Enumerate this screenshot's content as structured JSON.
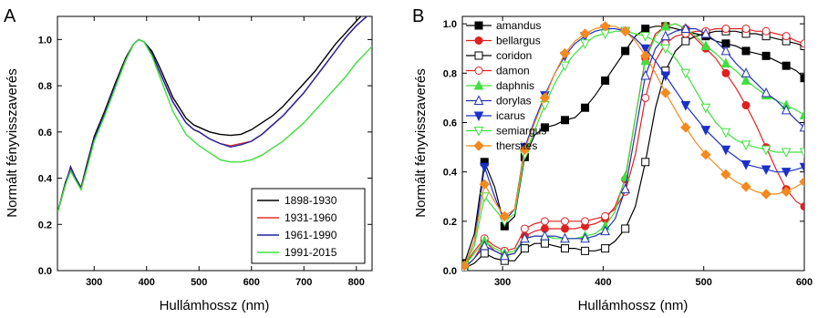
{
  "chart_data": [
    {
      "type": "line",
      "panel_label": "A",
      "xlabel": "Hullámhossz (nm)",
      "ylabel": "Normált fényvisszaverés",
      "xlim": [
        230,
        830
      ],
      "ylim": [
        0.0,
        1.1
      ],
      "xticks": [
        300,
        400,
        500,
        600,
        700,
        800
      ],
      "yticks": [
        0.0,
        0.2,
        0.4,
        0.6,
        0.8,
        1.0
      ],
      "ytick_labels": [
        "0.0",
        "0.2",
        "0.4",
        "0.6",
        "0.8",
        "1.0"
      ],
      "grid": false,
      "legend_position": "bottom-right",
      "series": [
        {
          "name": "1898-1930",
          "color": "#000000",
          "x": [
            230,
            245,
            255,
            265,
            275,
            285,
            300,
            320,
            340,
            360,
            375,
            385,
            395,
            410,
            425,
            450,
            475,
            490,
            500,
            520,
            540,
            560,
            580,
            600,
            620,
            640,
            660,
            680,
            700,
            720,
            740,
            760,
            780,
            800,
            830
          ],
          "y": [
            0.25,
            0.38,
            0.44,
            0.4,
            0.36,
            0.45,
            0.58,
            0.69,
            0.81,
            0.92,
            0.98,
            1.0,
            0.99,
            0.95,
            0.88,
            0.75,
            0.66,
            0.63,
            0.62,
            0.6,
            0.59,
            0.585,
            0.59,
            0.61,
            0.64,
            0.67,
            0.71,
            0.76,
            0.81,
            0.86,
            0.92,
            0.98,
            1.03,
            1.08,
            1.15
          ]
        },
        {
          "name": "1931-1960",
          "color": "#e03030",
          "x": [
            230,
            245,
            255,
            265,
            275,
            285,
            300,
            320,
            340,
            360,
            375,
            385,
            395,
            410,
            425,
            450,
            475,
            490,
            500,
            520,
            540,
            560,
            580,
            600,
            620,
            640,
            660,
            680,
            700,
            720,
            740,
            760,
            780,
            800,
            830
          ],
          "y": [
            0.25,
            0.37,
            0.44,
            0.4,
            0.36,
            0.44,
            0.57,
            0.68,
            0.8,
            0.91,
            0.98,
            1.0,
            0.99,
            0.94,
            0.86,
            0.73,
            0.64,
            0.61,
            0.6,
            0.57,
            0.55,
            0.54,
            0.55,
            0.56,
            0.59,
            0.63,
            0.67,
            0.72,
            0.77,
            0.83,
            0.89,
            0.95,
            1.01,
            1.06,
            1.12
          ]
        },
        {
          "name": "1961-1990",
          "color": "#2020a0",
          "x": [
            230,
            245,
            255,
            265,
            275,
            285,
            300,
            320,
            340,
            360,
            375,
            385,
            395,
            410,
            425,
            450,
            475,
            490,
            500,
            520,
            540,
            560,
            580,
            600,
            620,
            640,
            660,
            680,
            700,
            720,
            740,
            760,
            780,
            800,
            830
          ],
          "y": [
            0.25,
            0.37,
            0.45,
            0.4,
            0.355,
            0.44,
            0.57,
            0.68,
            0.8,
            0.91,
            0.98,
            1.0,
            0.99,
            0.94,
            0.86,
            0.73,
            0.64,
            0.61,
            0.6,
            0.57,
            0.55,
            0.535,
            0.545,
            0.56,
            0.59,
            0.63,
            0.67,
            0.72,
            0.77,
            0.83,
            0.89,
            0.95,
            1.01,
            1.06,
            1.12
          ]
        },
        {
          "name": "1991-2015",
          "color": "#3de03d",
          "x": [
            230,
            245,
            255,
            265,
            275,
            285,
            300,
            320,
            340,
            360,
            375,
            385,
            395,
            410,
            425,
            450,
            475,
            490,
            500,
            520,
            540,
            560,
            580,
            600,
            620,
            640,
            660,
            680,
            700,
            720,
            740,
            760,
            780,
            800,
            830
          ],
          "y": [
            0.25,
            0.37,
            0.43,
            0.39,
            0.35,
            0.43,
            0.56,
            0.67,
            0.79,
            0.91,
            0.98,
            1.0,
            0.99,
            0.93,
            0.84,
            0.69,
            0.59,
            0.56,
            0.54,
            0.51,
            0.48,
            0.47,
            0.47,
            0.48,
            0.5,
            0.53,
            0.56,
            0.6,
            0.64,
            0.69,
            0.74,
            0.79,
            0.84,
            0.9,
            0.97
          ]
        }
      ]
    },
    {
      "type": "line",
      "panel_label": "B",
      "xlabel": "Hullámhossz (nm)",
      "ylabel": "Normált fényvisszaverés",
      "xlim": [
        260,
        600
      ],
      "ylim": [
        0.0,
        1.03
      ],
      "xticks": [
        300,
        400,
        500,
        600
      ],
      "yticks": [
        0.0,
        0.2,
        0.4,
        0.6,
        0.8,
        1.0
      ],
      "ytick_labels": [
        "0.0",
        "0.2",
        "0.4",
        "0.6",
        "0.8",
        "1.0"
      ],
      "grid": false,
      "legend_position": "top-left",
      "series": [
        {
          "name": "amandus",
          "color": "#000000",
          "marker": "square-filled",
          "x": [
            262,
            272,
            282,
            292,
            302,
            312,
            322,
            332,
            342,
            352,
            362,
            372,
            382,
            392,
            402,
            412,
            422,
            432,
            442,
            452,
            462,
            472,
            482,
            492,
            502,
            512,
            522,
            532,
            542,
            552,
            562,
            572,
            582,
            592,
            600
          ],
          "y": [
            0.03,
            0.15,
            0.44,
            0.34,
            0.18,
            0.22,
            0.46,
            0.55,
            0.58,
            0.59,
            0.61,
            0.62,
            0.66,
            0.71,
            0.77,
            0.83,
            0.89,
            0.95,
            0.98,
            0.99,
            0.99,
            0.98,
            0.97,
            0.96,
            0.95,
            0.93,
            0.92,
            0.91,
            0.89,
            0.88,
            0.87,
            0.85,
            0.83,
            0.81,
            0.78
          ]
        },
        {
          "name": "bellargus",
          "color": "#e02020",
          "marker": "circle-filled",
          "x": [
            262,
            272,
            282,
            292,
            302,
            312,
            322,
            332,
            342,
            352,
            362,
            372,
            382,
            392,
            402,
            412,
            422,
            432,
            442,
            452,
            462,
            472,
            482,
            492,
            502,
            512,
            522,
            532,
            542,
            552,
            562,
            572,
            582,
            592,
            600
          ],
          "y": [
            0.01,
            0.05,
            0.12,
            0.08,
            0.06,
            0.07,
            0.14,
            0.16,
            0.17,
            0.17,
            0.17,
            0.17,
            0.18,
            0.19,
            0.21,
            0.26,
            0.37,
            0.62,
            0.86,
            0.96,
            0.99,
            1.0,
            0.98,
            0.94,
            0.9,
            0.86,
            0.8,
            0.74,
            0.67,
            0.59,
            0.5,
            0.41,
            0.33,
            0.28,
            0.26
          ]
        },
        {
          "name": "coridon",
          "color": "#000000",
          "marker": "square-open",
          "x": [
            262,
            272,
            282,
            292,
            302,
            312,
            322,
            332,
            342,
            352,
            362,
            372,
            382,
            392,
            402,
            412,
            422,
            432,
            442,
            452,
            462,
            472,
            482,
            492,
            502,
            512,
            522,
            532,
            542,
            552,
            562,
            572,
            582,
            592,
            600
          ],
          "y": [
            0.01,
            0.03,
            0.07,
            0.05,
            0.04,
            0.04,
            0.09,
            0.11,
            0.11,
            0.1,
            0.09,
            0.09,
            0.08,
            0.08,
            0.09,
            0.12,
            0.17,
            0.26,
            0.44,
            0.66,
            0.81,
            0.89,
            0.93,
            0.95,
            0.96,
            0.97,
            0.97,
            0.97,
            0.96,
            0.96,
            0.95,
            0.94,
            0.93,
            0.92,
            0.91
          ]
        },
        {
          "name": "damon",
          "color": "#e02020",
          "marker": "circle-open",
          "x": [
            262,
            272,
            282,
            292,
            302,
            312,
            322,
            332,
            342,
            352,
            362,
            372,
            382,
            392,
            402,
            412,
            422,
            432,
            442,
            452,
            462,
            472,
            482,
            492,
            502,
            512,
            522,
            532,
            542,
            552,
            562,
            572,
            582,
            592,
            600
          ],
          "y": [
            0.02,
            0.08,
            0.13,
            0.1,
            0.08,
            0.09,
            0.17,
            0.19,
            0.2,
            0.2,
            0.2,
            0.2,
            0.2,
            0.21,
            0.22,
            0.25,
            0.32,
            0.47,
            0.7,
            0.85,
            0.92,
            0.95,
            0.96,
            0.97,
            0.97,
            0.98,
            0.98,
            0.98,
            0.98,
            0.97,
            0.97,
            0.96,
            0.95,
            0.93,
            0.92
          ]
        },
        {
          "name": "daphnis",
          "color": "#3de03d",
          "marker": "triangle-up-filled",
          "x": [
            262,
            272,
            282,
            292,
            302,
            312,
            322,
            332,
            342,
            352,
            362,
            372,
            382,
            392,
            402,
            412,
            422,
            432,
            442,
            452,
            462,
            472,
            482,
            492,
            502,
            512,
            522,
            532,
            542,
            552,
            562,
            572,
            582,
            592,
            600
          ],
          "y": [
            0.02,
            0.07,
            0.12,
            0.09,
            0.07,
            0.08,
            0.13,
            0.14,
            0.14,
            0.13,
            0.13,
            0.13,
            0.14,
            0.15,
            0.18,
            0.24,
            0.38,
            0.62,
            0.85,
            0.95,
            0.99,
            1.0,
            0.98,
            0.95,
            0.91,
            0.88,
            0.84,
            0.81,
            0.77,
            0.74,
            0.71,
            0.69,
            0.67,
            0.65,
            0.63
          ]
        },
        {
          "name": "dorylas",
          "color": "#2030b0",
          "marker": "triangle-up-open",
          "x": [
            262,
            272,
            282,
            292,
            302,
            312,
            322,
            332,
            342,
            352,
            362,
            372,
            382,
            392,
            402,
            412,
            422,
            432,
            442,
            452,
            462,
            472,
            482,
            492,
            502,
            512,
            522,
            532,
            542,
            552,
            562,
            572,
            582,
            592,
            600
          ],
          "y": [
            0.01,
            0.05,
            0.1,
            0.08,
            0.06,
            0.07,
            0.13,
            0.14,
            0.14,
            0.14,
            0.13,
            0.13,
            0.13,
            0.14,
            0.16,
            0.21,
            0.33,
            0.56,
            0.79,
            0.9,
            0.95,
            0.97,
            0.98,
            0.98,
            0.96,
            0.93,
            0.89,
            0.84,
            0.8,
            0.76,
            0.72,
            0.69,
            0.65,
            0.61,
            0.58
          ]
        },
        {
          "name": "icarus",
          "color": "#1a30c8",
          "marker": "triangle-down-filled",
          "x": [
            262,
            272,
            282,
            292,
            302,
            312,
            322,
            332,
            342,
            352,
            362,
            372,
            382,
            392,
            402,
            412,
            422,
            432,
            442,
            452,
            462,
            472,
            482,
            492,
            502,
            512,
            522,
            532,
            542,
            552,
            562,
            572,
            582,
            592,
            600
          ],
          "y": [
            0.02,
            0.12,
            0.42,
            0.3,
            0.2,
            0.25,
            0.5,
            0.61,
            0.71,
            0.8,
            0.87,
            0.92,
            0.95,
            0.97,
            0.98,
            0.98,
            0.97,
            0.94,
            0.9,
            0.85,
            0.79,
            0.73,
            0.67,
            0.62,
            0.57,
            0.53,
            0.49,
            0.46,
            0.43,
            0.42,
            0.41,
            0.4,
            0.4,
            0.41,
            0.42
          ]
        },
        {
          "name": "semiargus",
          "color": "#3de03d",
          "marker": "triangle-down-open",
          "x": [
            262,
            272,
            282,
            292,
            302,
            312,
            322,
            332,
            342,
            352,
            362,
            372,
            382,
            392,
            402,
            412,
            422,
            432,
            442,
            452,
            462,
            472,
            482,
            492,
            502,
            512,
            522,
            532,
            542,
            552,
            562,
            572,
            582,
            592,
            600
          ],
          "y": [
            0.02,
            0.1,
            0.3,
            0.25,
            0.2,
            0.23,
            0.47,
            0.57,
            0.67,
            0.76,
            0.83,
            0.88,
            0.92,
            0.95,
            0.96,
            0.97,
            0.97,
            0.96,
            0.95,
            0.93,
            0.9,
            0.86,
            0.8,
            0.73,
            0.66,
            0.6,
            0.56,
            0.53,
            0.51,
            0.5,
            0.49,
            0.48,
            0.48,
            0.48,
            0.48
          ]
        },
        {
          "name": "thersites",
          "color": "#f5891e",
          "marker": "diamond-filled",
          "x": [
            262,
            272,
            282,
            292,
            302,
            312,
            322,
            332,
            342,
            352,
            362,
            372,
            382,
            392,
            402,
            412,
            422,
            432,
            442,
            452,
            462,
            472,
            482,
            492,
            502,
            512,
            522,
            532,
            542,
            552,
            562,
            572,
            582,
            592,
            600
          ],
          "y": [
            0.02,
            0.12,
            0.35,
            0.28,
            0.22,
            0.25,
            0.49,
            0.6,
            0.7,
            0.8,
            0.88,
            0.93,
            0.96,
            0.98,
            0.99,
            0.99,
            0.97,
            0.93,
            0.87,
            0.8,
            0.72,
            0.65,
            0.58,
            0.52,
            0.47,
            0.43,
            0.39,
            0.36,
            0.34,
            0.32,
            0.31,
            0.31,
            0.32,
            0.34,
            0.36
          ]
        }
      ]
    }
  ]
}
